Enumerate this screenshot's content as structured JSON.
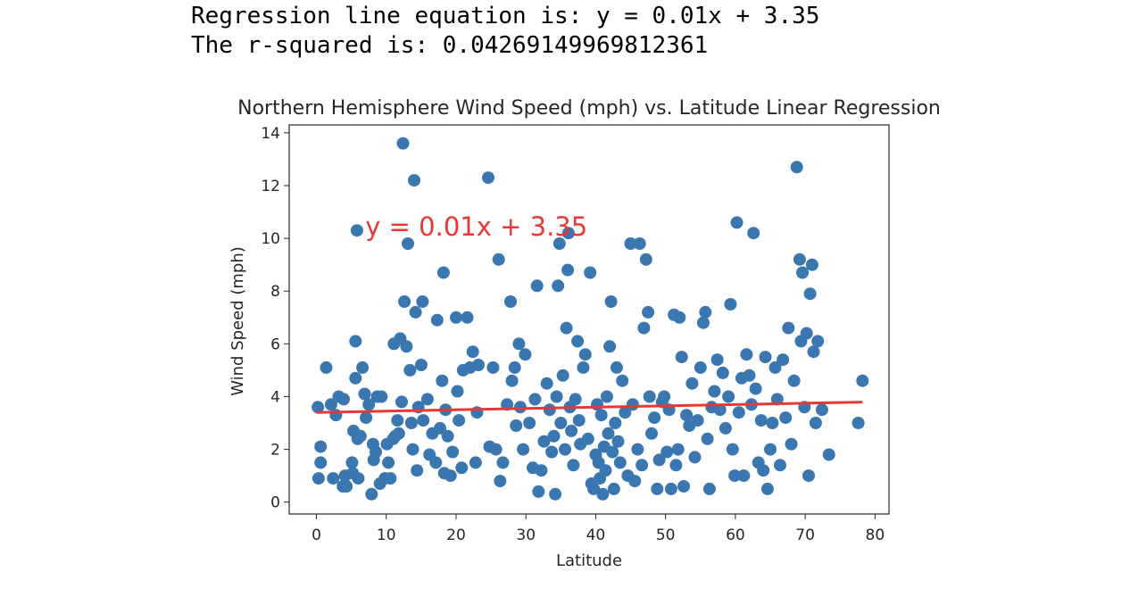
{
  "output": {
    "line1": "Regression line equation is: y = 0.01x + 3.35",
    "line2": "The r-squared is: 0.04269149969812361"
  },
  "colors": {
    "points": "#3a76af",
    "line": "#e53935",
    "annotation": "#e53935",
    "axis": "#262626"
  },
  "chart_data": {
    "type": "scatter",
    "title": "Northern Hemisphere Wind Speed (mph) vs. Latitude Linear Regression",
    "xlabel": "Latitude",
    "ylabel": "Wind Speed (mph)",
    "xlim": [
      -3.9,
      82
    ],
    "ylim": [
      -0.45,
      14.3
    ],
    "xticks": [
      0,
      10,
      20,
      30,
      40,
      50,
      60,
      70,
      80
    ],
    "yticks": [
      0,
      2,
      4,
      6,
      8,
      10,
      12,
      14
    ],
    "grid": false,
    "regression": {
      "slope": 0.005,
      "intercept": 3.4,
      "x_range": [
        0,
        78.2
      ]
    },
    "annotation": {
      "text": "y = 0.01x + 3.35",
      "x": 7,
      "y": 10.1
    },
    "points": [
      [
        0.2,
        3.6
      ],
      [
        0.3,
        0.9
      ],
      [
        0.6,
        2.1
      ],
      [
        0.6,
        1.5
      ],
      [
        1.4,
        5.1
      ],
      [
        2.1,
        3.7
      ],
      [
        2.4,
        0.9
      ],
      [
        2.8,
        3.3
      ],
      [
        3.2,
        4.0
      ],
      [
        3.9,
        3.9
      ],
      [
        3.8,
        0.6
      ],
      [
        4.1,
        1.0
      ],
      [
        4.3,
        0.6
      ],
      [
        5.1,
        1.5
      ],
      [
        5.2,
        1.1
      ],
      [
        5.3,
        2.7
      ],
      [
        5.6,
        6.1
      ],
      [
        5.8,
        10.3
      ],
      [
        5.6,
        4.7
      ],
      [
        5.9,
        2.4
      ],
      [
        6.0,
        0.9
      ],
      [
        6.3,
        2.5
      ],
      [
        6.6,
        5.1
      ],
      [
        6.9,
        4.1
      ],
      [
        7.1,
        3.2
      ],
      [
        7.5,
        3.7
      ],
      [
        7.9,
        0.3
      ],
      [
        8.1,
        2.2
      ],
      [
        8.2,
        1.6
      ],
      [
        8.5,
        1.9
      ],
      [
        8.7,
        4.0
      ],
      [
        9.1,
        0.7
      ],
      [
        9.3,
        4.0
      ],
      [
        9.8,
        0.9
      ],
      [
        10.1,
        2.2
      ],
      [
        10.3,
        1.5
      ],
      [
        10.6,
        0.9
      ],
      [
        11.0,
        2.4
      ],
      [
        11.1,
        6.0
      ],
      [
        11.3,
        2.5
      ],
      [
        11.6,
        3.1
      ],
      [
        11.8,
        2.6
      ],
      [
        12.0,
        6.2
      ],
      [
        12.2,
        3.8
      ],
      [
        12.4,
        13.6
      ],
      [
        12.6,
        7.6
      ],
      [
        12.9,
        5.9
      ],
      [
        13.1,
        9.8
      ],
      [
        13.4,
        5.0
      ],
      [
        13.6,
        3.0
      ],
      [
        13.8,
        2.0
      ],
      [
        14.0,
        12.2
      ],
      [
        14.2,
        7.2
      ],
      [
        14.4,
        1.2
      ],
      [
        14.6,
        3.6
      ],
      [
        15.0,
        5.2
      ],
      [
        15.2,
        7.6
      ],
      [
        15.3,
        3.1
      ],
      [
        15.9,
        3.9
      ],
      [
        16.2,
        1.8
      ],
      [
        16.6,
        2.6
      ],
      [
        17.1,
        1.5
      ],
      [
        17.3,
        6.9
      ],
      [
        17.7,
        2.8
      ],
      [
        18.0,
        4.6
      ],
      [
        18.2,
        8.7
      ],
      [
        18.3,
        1.1
      ],
      [
        18.5,
        3.5
      ],
      [
        18.8,
        2.5
      ],
      [
        19.2,
        1.0
      ],
      [
        19.5,
        1.9
      ],
      [
        20.0,
        7.0
      ],
      [
        20.2,
        4.2
      ],
      [
        20.4,
        3.1
      ],
      [
        20.8,
        1.3
      ],
      [
        21.0,
        5.0
      ],
      [
        21.6,
        7.0
      ],
      [
        22.0,
        5.1
      ],
      [
        22.4,
        5.7
      ],
      [
        22.8,
        1.5
      ],
      [
        23.0,
        3.4
      ],
      [
        23.2,
        5.2
      ],
      [
        24.6,
        12.3
      ],
      [
        24.8,
        2.1
      ],
      [
        25.3,
        5.1
      ],
      [
        25.7,
        2.0
      ],
      [
        26.1,
        9.2
      ],
      [
        26.3,
        0.8
      ],
      [
        26.7,
        1.5
      ],
      [
        27.3,
        3.7
      ],
      [
        27.8,
        7.6
      ],
      [
        28.0,
        4.6
      ],
      [
        28.4,
        5.1
      ],
      [
        28.6,
        2.9
      ],
      [
        29.0,
        6.0
      ],
      [
        29.2,
        3.6
      ],
      [
        29.6,
        2.0
      ],
      [
        29.9,
        5.6
      ],
      [
        30.5,
        3.0
      ],
      [
        31.0,
        1.3
      ],
      [
        31.3,
        3.9
      ],
      [
        31.6,
        8.2
      ],
      [
        31.8,
        0.4
      ],
      [
        32.2,
        1.2
      ],
      [
        32.6,
        2.3
      ],
      [
        33.0,
        4.5
      ],
      [
        33.4,
        3.5
      ],
      [
        33.7,
        1.9
      ],
      [
        34.0,
        2.5
      ],
      [
        34.2,
        0.3
      ],
      [
        34.4,
        4.0
      ],
      [
        34.6,
        8.2
      ],
      [
        34.8,
        9.8
      ],
      [
        35.0,
        3.0
      ],
      [
        35.3,
        4.8
      ],
      [
        35.6,
        2.0
      ],
      [
        35.8,
        6.6
      ],
      [
        36.0,
        8.8
      ],
      [
        36.1,
        10.2
      ],
      [
        36.3,
        3.6
      ],
      [
        36.5,
        2.7
      ],
      [
        36.8,
        1.4
      ],
      [
        37.1,
        3.9
      ],
      [
        37.4,
        6.1
      ],
      [
        37.6,
        3.1
      ],
      [
        37.8,
        2.2
      ],
      [
        38.2,
        5.1
      ],
      [
        38.5,
        5.6
      ],
      [
        38.9,
        2.4
      ],
      [
        39.2,
        8.7
      ],
      [
        39.4,
        0.7
      ],
      [
        39.7,
        0.5
      ],
      [
        40.0,
        1.8
      ],
      [
        40.2,
        3.7
      ],
      [
        40.4,
        1.5
      ],
      [
        40.6,
        0.9
      ],
      [
        40.8,
        3.3
      ],
      [
        41.0,
        0.3
      ],
      [
        41.2,
        2.1
      ],
      [
        41.4,
        1.2
      ],
      [
        41.6,
        4.0
      ],
      [
        41.8,
        2.6
      ],
      [
        42.0,
        5.9
      ],
      [
        42.2,
        7.6
      ],
      [
        42.4,
        1.9
      ],
      [
        42.6,
        0.5
      ],
      [
        42.8,
        3.0
      ],
      [
        43.0,
        5.1
      ],
      [
        43.2,
        2.3
      ],
      [
        43.5,
        1.5
      ],
      [
        43.8,
        4.6
      ],
      [
        44.2,
        3.4
      ],
      [
        44.6,
        1.0
      ],
      [
        45.0,
        9.8
      ],
      [
        45.3,
        3.7
      ],
      [
        45.6,
        0.8
      ],
      [
        46.0,
        2.0
      ],
      [
        46.3,
        9.8
      ],
      [
        46.6,
        1.4
      ],
      [
        46.9,
        6.6
      ],
      [
        47.2,
        9.2
      ],
      [
        47.5,
        7.2
      ],
      [
        47.7,
        4.0
      ],
      [
        48.0,
        2.6
      ],
      [
        48.4,
        3.2
      ],
      [
        48.8,
        0.5
      ],
      [
        49.1,
        1.6
      ],
      [
        49.5,
        3.8
      ],
      [
        49.8,
        4.0
      ],
      [
        50.2,
        1.9
      ],
      [
        50.5,
        3.5
      ],
      [
        50.8,
        0.5
      ],
      [
        51.2,
        7.1
      ],
      [
        51.5,
        1.4
      ],
      [
        51.8,
        2.0
      ],
      [
        52.0,
        7.0
      ],
      [
        52.3,
        5.5
      ],
      [
        52.6,
        0.6
      ],
      [
        53.0,
        3.3
      ],
      [
        53.4,
        2.9
      ],
      [
        53.8,
        4.5
      ],
      [
        54.2,
        1.7
      ],
      [
        54.6,
        3.1
      ],
      [
        55.0,
        5.1
      ],
      [
        55.4,
        6.8
      ],
      [
        55.7,
        7.2
      ],
      [
        56.0,
        2.4
      ],
      [
        56.3,
        0.5
      ],
      [
        56.6,
        3.6
      ],
      [
        57.0,
        4.2
      ],
      [
        57.4,
        5.4
      ],
      [
        57.8,
        3.5
      ],
      [
        58.2,
        4.9
      ],
      [
        58.6,
        2.8
      ],
      [
        59.0,
        4.0
      ],
      [
        59.3,
        7.5
      ],
      [
        59.6,
        2.0
      ],
      [
        59.9,
        1.0
      ],
      [
        60.2,
        10.6
      ],
      [
        60.5,
        3.4
      ],
      [
        60.9,
        4.7
      ],
      [
        61.2,
        1.0
      ],
      [
        61.6,
        5.6
      ],
      [
        62.0,
        4.8
      ],
      [
        62.3,
        3.7
      ],
      [
        62.6,
        10.2
      ],
      [
        62.9,
        4.3
      ],
      [
        63.3,
        1.5
      ],
      [
        63.7,
        3.1
      ],
      [
        64.0,
        1.2
      ],
      [
        64.3,
        5.5
      ],
      [
        64.6,
        0.5
      ],
      [
        65.0,
        2.0
      ],
      [
        65.3,
        3.0
      ],
      [
        65.7,
        5.1
      ],
      [
        66.0,
        3.9
      ],
      [
        66.4,
        1.4
      ],
      [
        66.8,
        5.4
      ],
      [
        67.2,
        3.2
      ],
      [
        67.6,
        6.6
      ],
      [
        68.0,
        2.2
      ],
      [
        68.4,
        4.6
      ],
      [
        68.8,
        12.7
      ],
      [
        69.2,
        9.2
      ],
      [
        69.4,
        6.1
      ],
      [
        69.6,
        8.7
      ],
      [
        69.9,
        3.6
      ],
      [
        70.2,
        6.4
      ],
      [
        70.5,
        1.0
      ],
      [
        70.7,
        7.9
      ],
      [
        71.0,
        9.0
      ],
      [
        71.2,
        5.7
      ],
      [
        71.5,
        3.0
      ],
      [
        71.8,
        6.1
      ],
      [
        72.4,
        3.5
      ],
      [
        73.4,
        1.8
      ],
      [
        77.6,
        3.0
      ],
      [
        78.2,
        4.6
      ]
    ]
  }
}
